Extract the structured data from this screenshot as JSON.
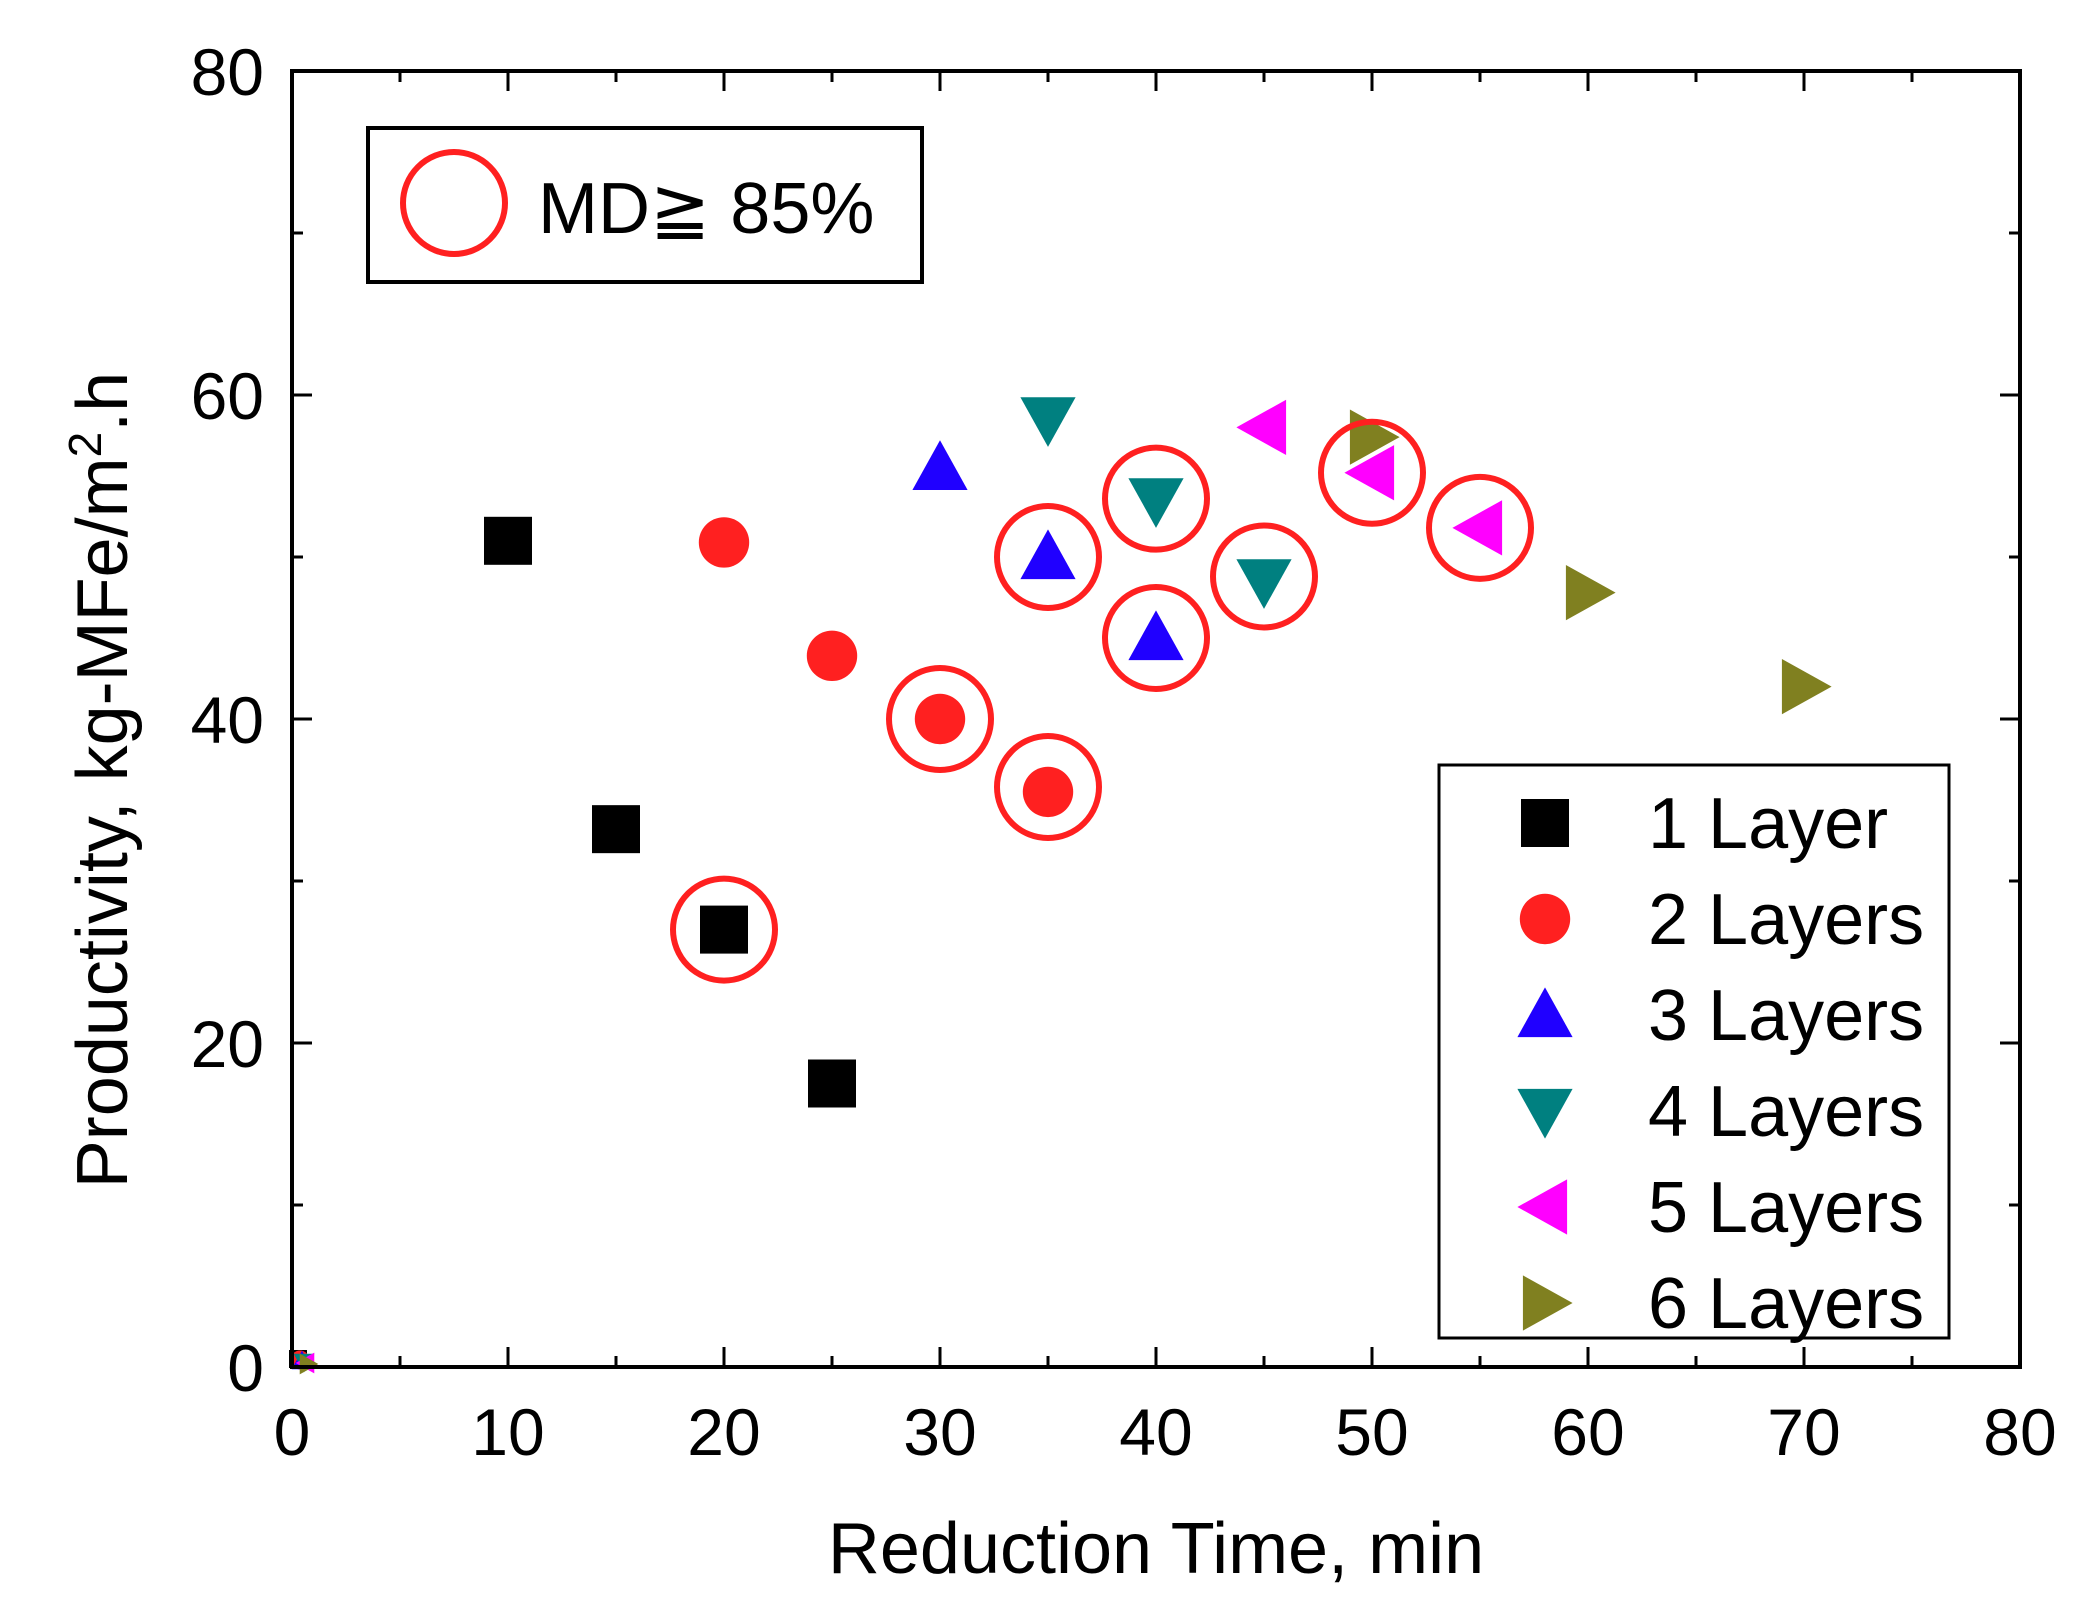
{
  "chart_data": {
    "type": "scatter",
    "title": "",
    "xlabel": "Reduction Time, min",
    "ylabel_main": "Productivity, kg-MFe/m",
    "ylabel_sup": "2",
    "ylabel_tail": ".h",
    "xlim": [
      0,
      80
    ],
    "ylim": [
      0,
      80
    ],
    "xticks": [
      0,
      10,
      20,
      30,
      40,
      50,
      60,
      70,
      80
    ],
    "yticks": [
      0,
      20,
      40,
      60,
      80
    ],
    "xtick_labels": [
      "0",
      "10",
      "20",
      "30",
      "40",
      "50",
      "60",
      "70",
      "80"
    ],
    "ytick_labels": [
      "0",
      "20",
      "40",
      "60",
      "80"
    ],
    "grid": false,
    "legend_position": "bottom-right",
    "series": [
      {
        "name": "1 Layer",
        "marker": "square",
        "color": "#000000",
        "points": [
          [
            0,
            0
          ],
          [
            10,
            51
          ],
          [
            15,
            33.2
          ],
          [
            20,
            27
          ],
          [
            25,
            17.5
          ]
        ]
      },
      {
        "name": "2 Layers",
        "marker": "circle",
        "color": "#ff2020",
        "points": [
          [
            0,
            0
          ],
          [
            20,
            50.9
          ],
          [
            25,
            43.9
          ],
          [
            30,
            40
          ],
          [
            35,
            35.5
          ]
        ]
      },
      {
        "name": "3 Layers",
        "marker": "triangle-up",
        "color": "#2000ff",
        "points": [
          [
            0,
            0
          ],
          [
            30,
            55.5
          ],
          [
            35,
            50
          ],
          [
            40,
            45
          ]
        ]
      },
      {
        "name": "4 Layers",
        "marker": "triangle-down",
        "color": "#008080",
        "points": [
          [
            0,
            0
          ],
          [
            35,
            58.5
          ],
          [
            40,
            53.5
          ],
          [
            45,
            48.5
          ]
        ]
      },
      {
        "name": "5 Layers",
        "marker": "triangle-left",
        "color": "#ff00ff",
        "points": [
          [
            0,
            0
          ],
          [
            45,
            58
          ],
          [
            50,
            55.2
          ],
          [
            55,
            51.8
          ]
        ]
      },
      {
        "name": "6 Layers",
        "marker": "triangle-right",
        "color": "#808020",
        "points": [
          [
            0,
            0
          ],
          [
            50,
            57.4
          ],
          [
            60,
            47.8
          ],
          [
            70,
            42
          ]
        ]
      }
    ],
    "highlight": {
      "label": "MD≧ 85%",
      "color": "#ff2020",
      "points": [
        [
          20,
          27
        ],
        [
          30,
          40
        ],
        [
          35,
          35.8
        ],
        [
          35,
          50
        ],
        [
          40,
          53.6
        ],
        [
          40,
          45
        ],
        [
          45,
          48.8
        ],
        [
          50,
          55.2
        ],
        [
          55,
          51.8
        ]
      ]
    }
  }
}
